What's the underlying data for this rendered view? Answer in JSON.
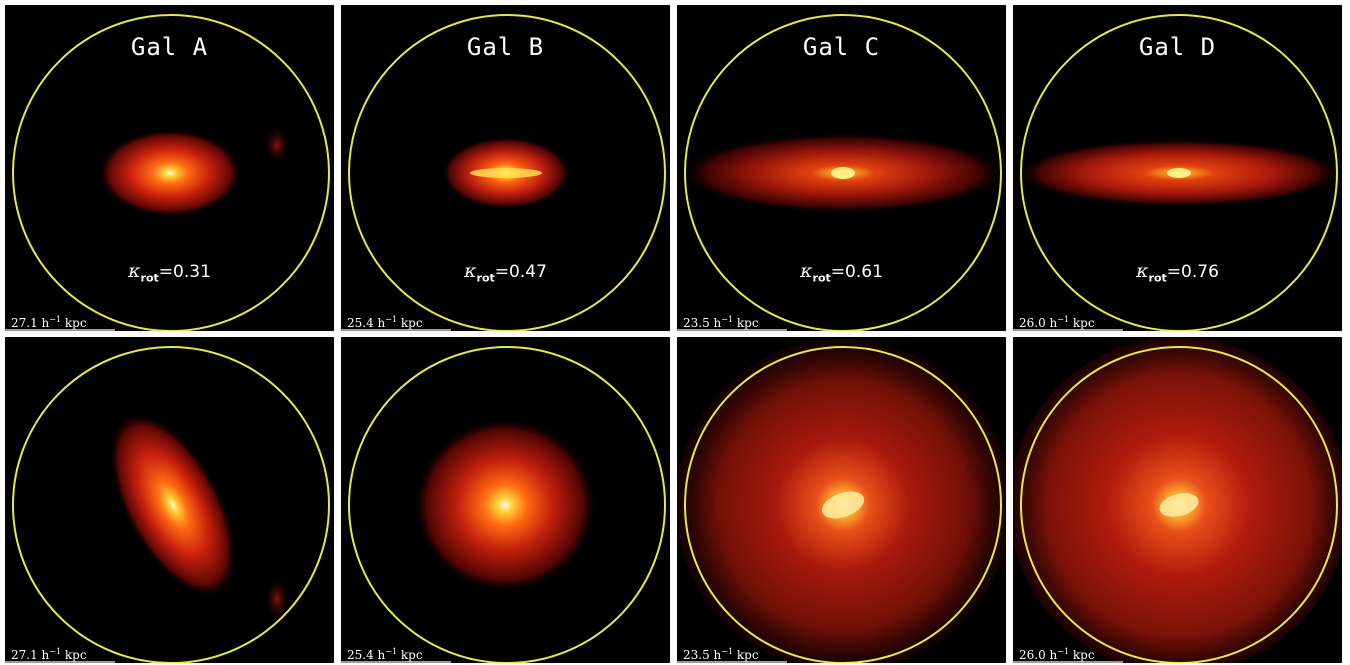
{
  "figure": {
    "galaxies": [
      {
        "title": "Gal A",
        "kappa_symbol": "κ",
        "kappa_sub": "rot",
        "kappa_value": "=0.31",
        "scale_value": "27.1",
        "scale_h": "h",
        "scale_exp": "−1",
        "scale_unit": "kpc"
      },
      {
        "title": "Gal B",
        "kappa_symbol": "κ",
        "kappa_sub": "rot",
        "kappa_value": "=0.47",
        "scale_value": "25.4",
        "scale_h": "h",
        "scale_exp": "−1",
        "scale_unit": "kpc"
      },
      {
        "title": "Gal C",
        "kappa_symbol": "κ",
        "kappa_sub": "rot",
        "kappa_value": "=0.61",
        "scale_value": "23.5",
        "scale_h": "h",
        "scale_exp": "−1",
        "scale_unit": "kpc"
      },
      {
        "title": "Gal D",
        "kappa_symbol": "κ",
        "kappa_sub": "rot",
        "kappa_value": "=0.76",
        "scale_value": "26.0",
        "scale_h": "h",
        "scale_exp": "−1",
        "scale_unit": "kpc"
      }
    ],
    "colors": {
      "background": "#000000",
      "circle": "#e8e84a",
      "glow_core": "#ffffe0",
      "glow_mid": "#ff8c1a",
      "glow_outer": "#b81d0f"
    }
  }
}
